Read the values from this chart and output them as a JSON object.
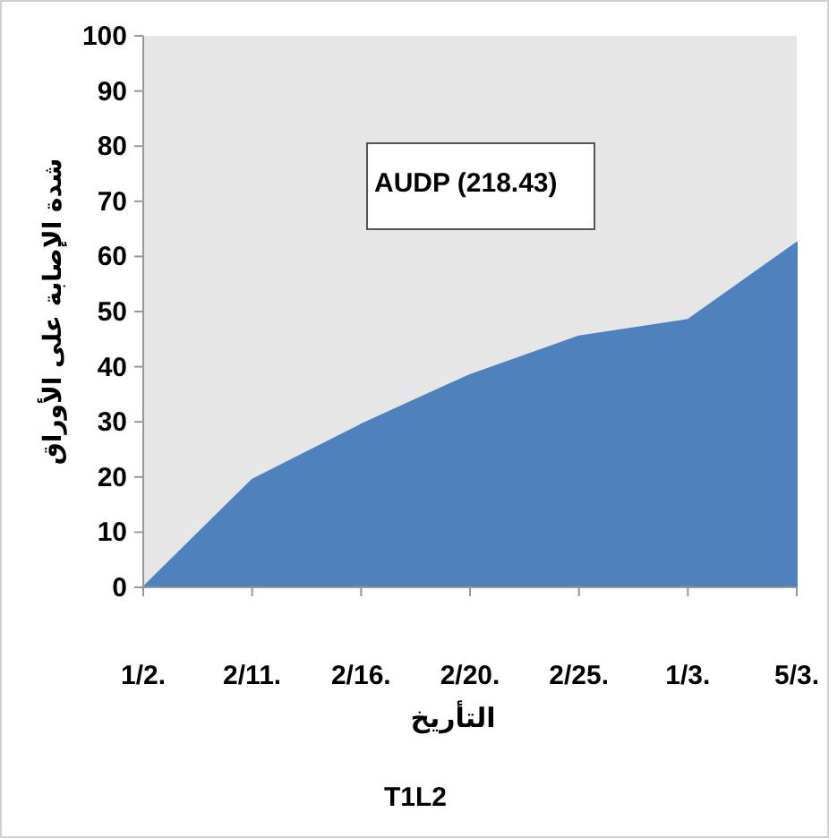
{
  "chart_data": {
    "type": "area",
    "categories": [
      "1/2.",
      "2/11.",
      "2/16.",
      "2/20.",
      "2/25.",
      "1/3.",
      "5/3."
    ],
    "values": [
      0,
      19.5,
      29.5,
      38.5,
      45.5,
      48.5,
      62.5
    ],
    "color": "#4f81bd",
    "ylim": [
      0,
      100
    ],
    "yticks": [
      0,
      10,
      20,
      30,
      40,
      50,
      60,
      70,
      80,
      90,
      100
    ],
    "xlabel": "التأريخ",
    "ylabel": "شدة الإصابة على الأوراق",
    "annotations": [
      "AUDP (218.43)",
      "T1L2"
    ]
  }
}
